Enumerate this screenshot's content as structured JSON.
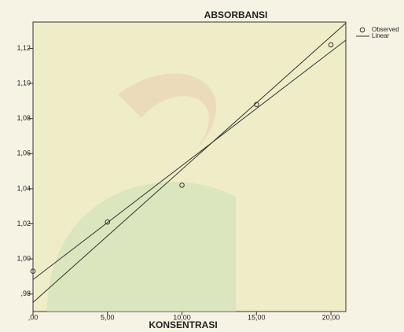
{
  "chart_data": {
    "type": "scatter",
    "title": "ABSORBANSI",
    "x_label": "KONSENTRASI",
    "xlim": [
      0,
      21
    ],
    "ylim": [
      0.97,
      1.135
    ],
    "xticks": [
      {
        "value": 0,
        "label": ",00"
      },
      {
        "value": 5,
        "label": "5,00"
      },
      {
        "value": 10,
        "label": "10,00"
      },
      {
        "value": 15,
        "label": "15,00"
      },
      {
        "value": 20,
        "label": "20,00"
      }
    ],
    "yticks": [
      {
        "value": 0.98,
        "label": ",98"
      },
      {
        "value": 1.0,
        "label": "1,00"
      },
      {
        "value": 1.02,
        "label": "1,02"
      },
      {
        "value": 1.04,
        "label": "1,04"
      },
      {
        "value": 1.06,
        "label": "1,06"
      },
      {
        "value": 1.08,
        "label": "1,08"
      },
      {
        "value": 1.1,
        "label": "1,10"
      },
      {
        "value": 1.12,
        "label": "1,12"
      }
    ],
    "plot_background": "#efecc8",
    "series": [
      {
        "name": "Observed",
        "type": "scatter",
        "color": "#333333",
        "x": [
          0,
          5,
          10,
          15,
          20
        ],
        "values": [
          0.993,
          1.021,
          1.042,
          1.088,
          1.122
        ]
      },
      {
        "name": "Linear",
        "type": "line",
        "color": "#333333",
        "x": [
          0,
          21
        ],
        "values": [
          0.9882,
          1.1247
        ]
      },
      {
        "type": "line",
        "color": "#333333",
        "x": [
          0,
          21
        ],
        "values": [
          0.9752,
          1.1344
        ]
      }
    ]
  }
}
